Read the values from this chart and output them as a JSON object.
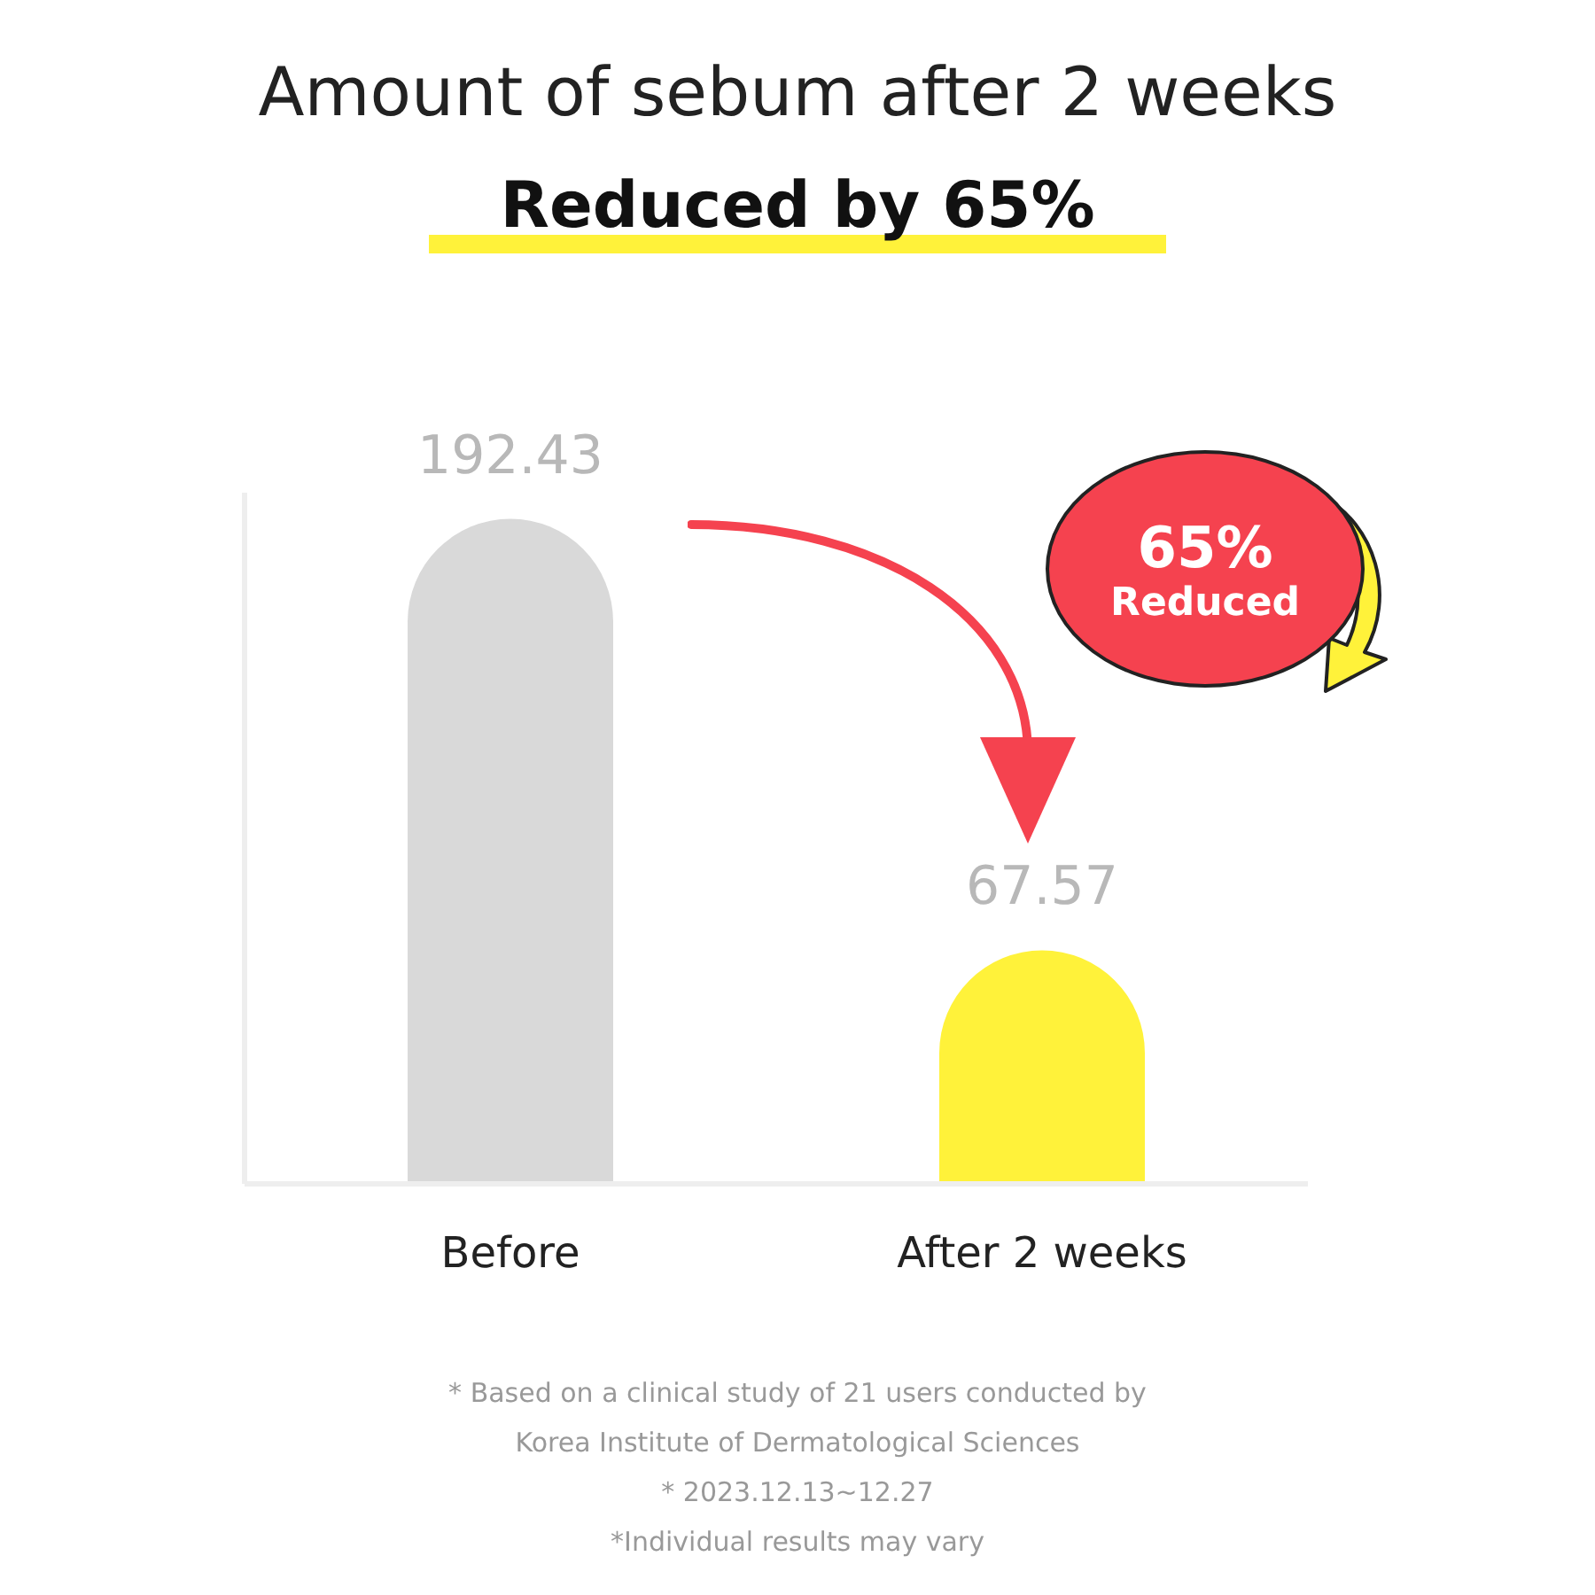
{
  "chart_data": {
    "type": "bar",
    "title": "Amount of sebum after 2 weeks",
    "subtitle": "Reduced by 65%",
    "categories": [
      "Before",
      "After 2 weeks"
    ],
    "values": [
      192.43,
      67.57
    ],
    "colors": [
      "#d9d9d9",
      "#fff23a"
    ],
    "tick_labels": "x",
    "data_labels": true,
    "annotations": [
      "65% Reduced",
      "* Based on a clinical study of 21 users conducted by Korea Institute of Dermatological Sciences",
      "* 2023.12.13~12.27",
      "*Individual results may vary"
    ]
  }
}
